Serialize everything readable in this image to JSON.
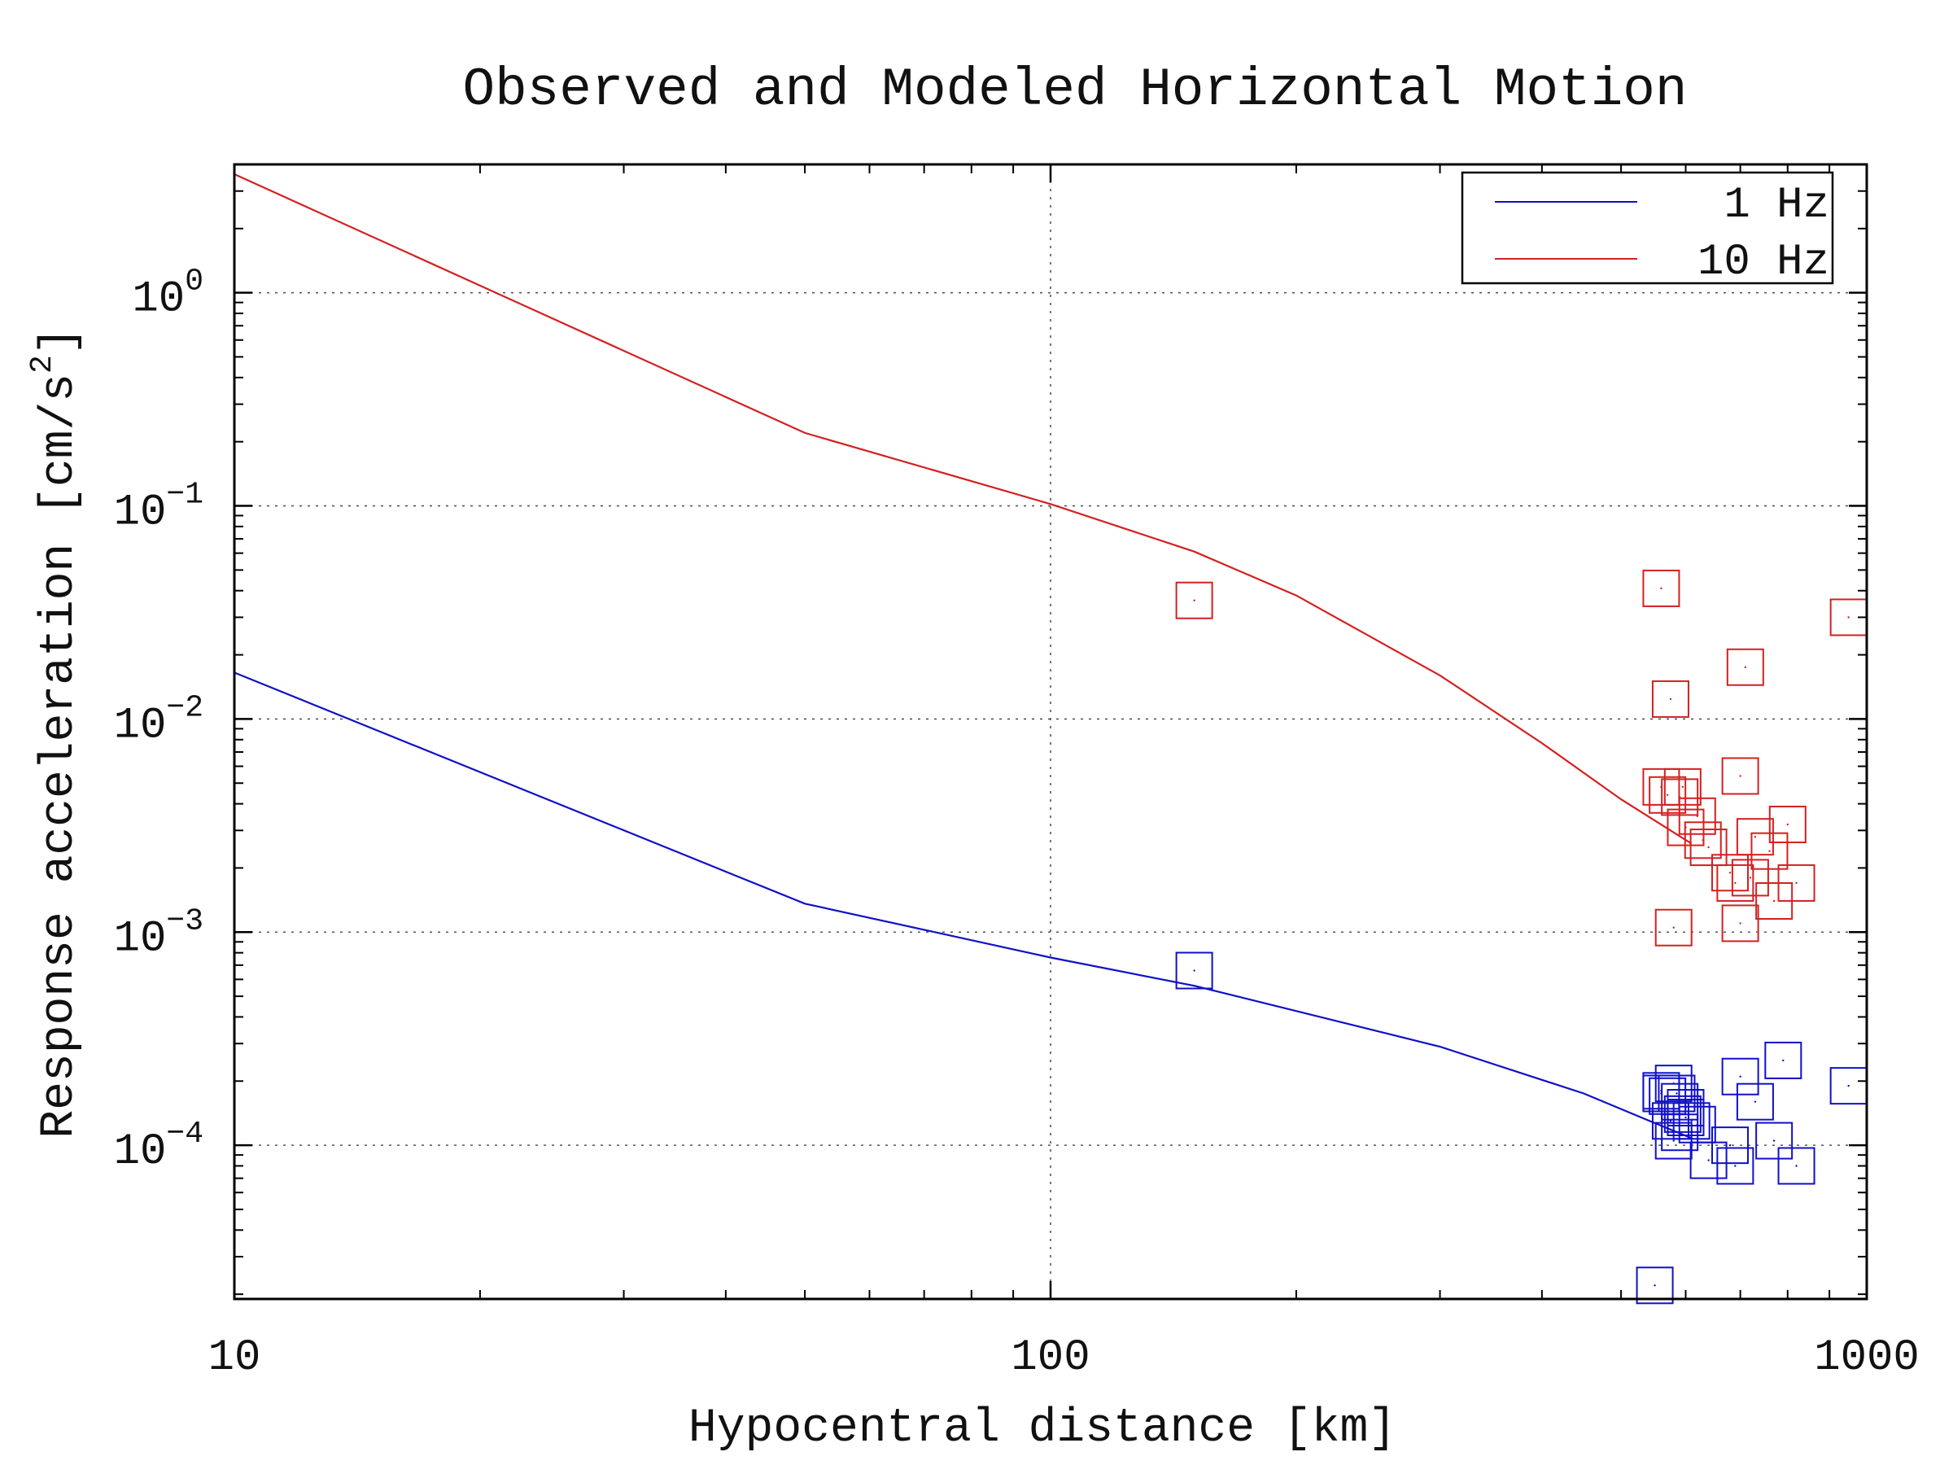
{
  "chart_data": {
    "type": "line",
    "title": "Observed and Modeled Horizontal Motion",
    "xlabel": "Hypocentral distance [km]",
    "ylabel_text": "Response acceleration [cm/s",
    "ylabel_sup": "2",
    "ylabel_close": "]",
    "xscale": "log",
    "yscale": "log",
    "xlim": [
      10,
      1000
    ],
    "ylim": [
      1.9e-05,
      4
    ],
    "grid": true,
    "legend_position": "top-right",
    "x_ticks": [
      {
        "value": 10,
        "label": "10"
      },
      {
        "value": 100,
        "label": "100"
      },
      {
        "value": 1000,
        "label": "1000"
      }
    ],
    "y_ticks": [
      {
        "value": 1,
        "base": "10",
        "exp": "0"
      },
      {
        "value": 0.1,
        "base": "10",
        "exp": "−1"
      },
      {
        "value": 0.01,
        "base": "10",
        "exp": "−2"
      },
      {
        "value": 0.001,
        "base": "10",
        "exp": "−3"
      },
      {
        "value": 0.0001,
        "base": "10",
        "exp": "−4"
      }
    ],
    "series": [
      {
        "name": "1 Hz",
        "color": "#1010c8",
        "line": {
          "x": [
            10,
            50,
            100,
            150,
            300,
            450,
            550,
            610
          ],
          "y": [
            0.0165,
            0.00136,
            0.00076,
            0.00056,
            0.00029,
            0.000175,
            0.000127,
            0.000108
          ]
        },
        "observed": {
          "x": [
            150,
            560,
            570,
            575,
            580,
            585,
            590,
            595,
            600,
            610,
            620,
            640,
            560,
            580,
            600,
            700,
            680,
            730,
            770,
            790,
            820,
            950,
            690,
            550,
            590
          ],
          "y": [
            0.00066,
            0.00018,
            0.00017,
            0.00013,
            0.000195,
            0.000175,
            0.000115,
            0.00014,
            0.00015,
            0.00013,
            0.000125,
            8.5e-05,
            0.000175,
            0.000105,
            0.000135,
            0.00021,
            0.0001,
            0.00016,
            0.000105,
            0.00025,
            8e-05,
            0.00019,
            8e-05,
            2.2e-05,
            0.00016
          ]
        }
      },
      {
        "name": "10 Hz",
        "color": "#d42020",
        "line": {
          "x": [
            10,
            50,
            100,
            150,
            200,
            300,
            400,
            500,
            610
          ],
          "y": [
            3.6,
            0.22,
            0.102,
            0.061,
            0.038,
            0.016,
            0.0077,
            0.0042,
            0.0026
          ]
        },
        "observed": {
          "x": [
            150,
            560,
            575,
            595,
            620,
            600,
            630,
            560,
            570,
            640,
            700,
            720,
            730,
            760,
            770,
            800,
            820,
            680,
            690,
            700,
            710,
            580,
            590,
            950
          ],
          "y": [
            0.036,
            0.041,
            0.0124,
            0.0048,
            0.0035,
            0.0031,
            0.0027,
            0.0048,
            0.0044,
            0.0025,
            0.0054,
            0.0018,
            0.0028,
            0.0024,
            0.0014,
            0.0032,
            0.0017,
            0.0019,
            0.0017,
            0.0011,
            0.0175,
            0.00105,
            0.0043,
            0.03
          ]
        }
      }
    ]
  }
}
